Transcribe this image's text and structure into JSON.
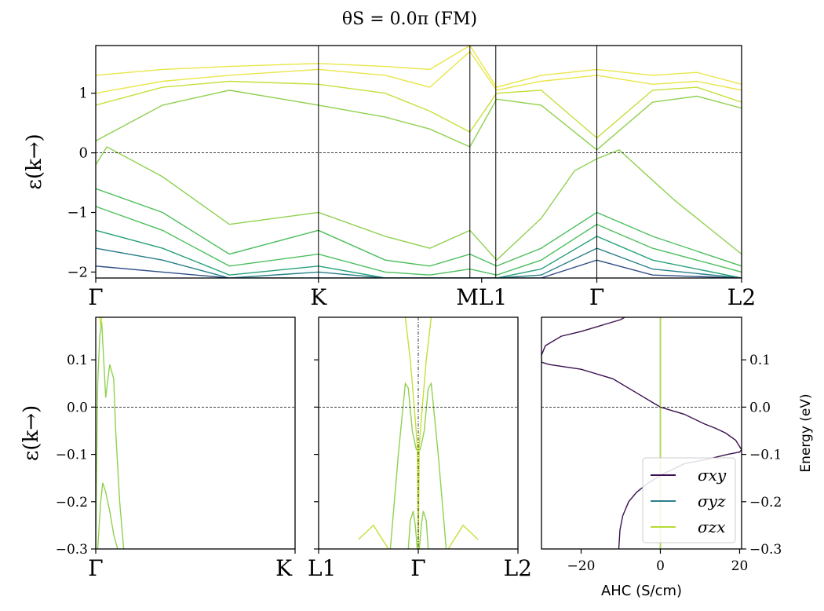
{
  "title": "θS = 0.0π (FM)",
  "colors": {
    "band_palette": [
      "#2f4f86",
      "#2a7f8a",
      "#26a07a",
      "#4cbf5d",
      "#8fd14f",
      "#c6df3a",
      "#e9e64a"
    ],
    "sigma_xy": "#3b0f4f",
    "sigma_yz": "#2a7f8a",
    "sigma_zx": "#b5dc36",
    "axis": "#000000",
    "fermi_line": "#000000"
  },
  "chart_data": [
    {
      "type": "line",
      "panel": "band-structure-full",
      "ylabel": "ε(k→)",
      "ylim": [
        -2.1,
        1.8
      ],
      "yticks": [
        -2,
        -1,
        0,
        1
      ],
      "ytick_labels": [
        "−2",
        "−1",
        "0",
        "1"
      ],
      "path_labels": [
        "Γ",
        "K",
        "ML1",
        "Γ",
        "L2"
      ],
      "path_positions": [
        0.0,
        1.0,
        1.68,
        2.25,
        2.9
      ],
      "fermi_level": 0,
      "series": [
        {
          "name": "band-1",
          "color_index": 6,
          "x": [
            0,
            0.3,
            0.6,
            1.0,
            1.3,
            1.5,
            1.68,
            1.8,
            2.0,
            2.25,
            2.5,
            2.7,
            2.9
          ],
          "y": [
            1.3,
            1.4,
            1.45,
            1.5,
            1.45,
            1.4,
            1.8,
            1.1,
            1.3,
            1.4,
            1.3,
            1.35,
            1.15
          ]
        },
        {
          "name": "band-2",
          "color_index": 6,
          "x": [
            0,
            0.3,
            0.6,
            1.0,
            1.3,
            1.5,
            1.68,
            1.8,
            2.0,
            2.25,
            2.5,
            2.7,
            2.9
          ],
          "y": [
            1.0,
            1.2,
            1.3,
            1.4,
            1.3,
            1.1,
            1.7,
            1.05,
            1.2,
            1.3,
            1.15,
            1.2,
            1.05
          ]
        },
        {
          "name": "band-3",
          "color_index": 5,
          "x": [
            0,
            0.3,
            0.6,
            1.0,
            1.3,
            1.5,
            1.68,
            1.8,
            2.0,
            2.25,
            2.5,
            2.7,
            2.9
          ],
          "y": [
            0.8,
            1.1,
            1.2,
            1.15,
            1.0,
            0.7,
            0.35,
            1.0,
            1.05,
            0.25,
            1.05,
            1.1,
            0.85
          ]
        },
        {
          "name": "band-4",
          "color_index": 4,
          "x": [
            0,
            0.3,
            0.6,
            1.0,
            1.3,
            1.5,
            1.68,
            1.8,
            2.0,
            2.25,
            2.5,
            2.7,
            2.9
          ],
          "y": [
            0.2,
            0.8,
            1.05,
            0.8,
            0.6,
            0.4,
            0.1,
            0.9,
            0.8,
            0.05,
            0.85,
            0.95,
            0.75
          ]
        },
        {
          "name": "band-5",
          "color_index": 4,
          "x": [
            0,
            0.05,
            0.3,
            0.6,
            1.0,
            1.3,
            1.5,
            1.68,
            1.8,
            2.0,
            2.15,
            2.25,
            2.35,
            2.6,
            2.9
          ],
          "y": [
            -0.2,
            0.1,
            -0.4,
            -1.2,
            -1.0,
            -1.4,
            -1.6,
            -1.3,
            -1.8,
            -1.1,
            -0.3,
            -0.1,
            0.05,
            -0.8,
            -1.7
          ]
        },
        {
          "name": "band-6",
          "color_index": 3,
          "x": [
            0,
            0.3,
            0.6,
            1.0,
            1.3,
            1.5,
            1.68,
            1.8,
            2.0,
            2.25,
            2.5,
            2.9
          ],
          "y": [
            -0.6,
            -1.0,
            -1.7,
            -1.3,
            -1.8,
            -1.9,
            -1.7,
            -1.9,
            -1.6,
            -1.0,
            -1.4,
            -1.9
          ]
        },
        {
          "name": "band-7",
          "color_index": 3,
          "x": [
            0,
            0.3,
            0.6,
            1.0,
            1.3,
            1.5,
            1.68,
            1.8,
            2.0,
            2.25,
            2.5,
            2.9
          ],
          "y": [
            -0.9,
            -1.3,
            -1.9,
            -1.7,
            -2.0,
            -2.05,
            -1.95,
            -2.05,
            -1.8,
            -1.2,
            -1.6,
            -2.0
          ]
        },
        {
          "name": "band-8",
          "color_index": 2,
          "x": [
            0,
            0.3,
            0.6,
            1.0,
            1.3,
            1.68,
            1.8,
            2.0,
            2.25,
            2.5,
            2.9
          ],
          "y": [
            -1.3,
            -1.6,
            -2.05,
            -1.9,
            -2.1,
            -2.1,
            -2.1,
            -1.95,
            -1.4,
            -1.8,
            -2.1
          ]
        },
        {
          "name": "band-9",
          "color_index": 1,
          "x": [
            0,
            0.3,
            0.6,
            1.0,
            1.3,
            1.68,
            1.8,
            2.0,
            2.25,
            2.5,
            2.9
          ],
          "y": [
            -1.6,
            -1.8,
            -2.1,
            -2.0,
            -2.1,
            -2.1,
            -2.1,
            -2.05,
            -1.6,
            -1.95,
            -2.1
          ]
        },
        {
          "name": "band-10",
          "color_index": 0,
          "x": [
            0,
            0.3,
            0.6,
            1.0,
            1.68,
            2.0,
            2.25,
            2.5,
            2.9
          ],
          "y": [
            -1.9,
            -2.0,
            -2.1,
            -2.1,
            -2.1,
            -2.1,
            -1.8,
            -2.05,
            -2.1
          ]
        }
      ]
    },
    {
      "type": "line",
      "panel": "band-zoom-gamma-k",
      "ylabel": "ε(k→)",
      "ylim": [
        -0.3,
        0.19
      ],
      "yticks": [
        -0.3,
        -0.2,
        -0.1,
        0.0,
        0.1
      ],
      "ytick_labels": [
        "−0.3",
        "−0.2",
        "−0.1",
        "0.0",
        "0.1"
      ],
      "path_labels": [
        "Γ",
        "K"
      ],
      "xlim": [
        0,
        1
      ],
      "fermi_level": 0,
      "series": [
        {
          "name": "band-a",
          "color_index": 4,
          "x": [
            0.0,
            0.005,
            0.01,
            0.02,
            0.03,
            0.05,
            0.07,
            0.09,
            0.1,
            0.12,
            0.14
          ],
          "y": [
            -0.3,
            -0.1,
            0.05,
            0.15,
            0.18,
            0.02,
            0.09,
            0.06,
            -0.05,
            -0.2,
            -0.3
          ]
        },
        {
          "name": "band-b",
          "color_index": 4,
          "x": [
            0.01,
            0.025,
            0.035,
            0.05,
            0.07,
            0.09,
            0.11
          ],
          "y": [
            -0.3,
            -0.2,
            -0.16,
            -0.18,
            -0.22,
            -0.27,
            -0.3
          ]
        },
        {
          "name": "band-c",
          "color_index": 5,
          "x": [
            0.02,
            0.025,
            0.03,
            0.04
          ],
          "y": [
            0.19,
            0.17,
            0.19,
            0.19
          ]
        }
      ]
    },
    {
      "type": "line",
      "panel": "band-zoom-l1-gamma-l2",
      "ylim": [
        -0.3,
        0.19
      ],
      "path_labels": [
        "L1",
        "Γ",
        "L2"
      ],
      "xlim": [
        -1,
        1
      ],
      "fermi_level": 0,
      "gamma_vline": true,
      "series": [
        {
          "name": "band-l",
          "color_index": 4,
          "x": [
            -0.28,
            -0.2,
            -0.13,
            -0.1,
            -0.06,
            -0.02,
            0.0
          ],
          "y": [
            -0.3,
            -0.1,
            0.05,
            0.04,
            -0.05,
            -0.09,
            -0.09
          ]
        },
        {
          "name": "band-r",
          "color_index": 4,
          "x": [
            0.0,
            0.02,
            0.06,
            0.1,
            0.13,
            0.2,
            0.28
          ],
          "y": [
            -0.09,
            -0.09,
            -0.05,
            0.04,
            0.05,
            -0.1,
            -0.3
          ]
        },
        {
          "name": "band-l-up",
          "color_index": 5,
          "x": [
            -0.13,
            -0.08,
            -0.04,
            -0.01,
            0.0
          ],
          "y": [
            0.19,
            0.1,
            0.0,
            -0.08,
            -0.3
          ]
        },
        {
          "name": "band-r-up",
          "color_index": 5,
          "x": [
            0.0,
            0.01,
            0.04,
            0.08,
            0.13
          ],
          "y": [
            -0.3,
            -0.08,
            0.0,
            0.1,
            0.19
          ]
        },
        {
          "name": "band-l-low",
          "color_index": 4,
          "x": [
            -0.1,
            -0.08,
            -0.05,
            -0.03,
            -0.01
          ],
          "y": [
            -0.3,
            -0.24,
            -0.22,
            -0.25,
            -0.3
          ]
        },
        {
          "name": "band-r-low",
          "color_index": 4,
          "x": [
            0.01,
            0.03,
            0.05,
            0.08,
            0.1
          ],
          "y": [
            -0.3,
            -0.25,
            -0.22,
            -0.24,
            -0.3
          ]
        },
        {
          "name": "band-outer-l",
          "color_index": 5,
          "x": [
            -0.6,
            -0.45,
            -0.3
          ],
          "y": [
            -0.28,
            -0.25,
            -0.3
          ]
        },
        {
          "name": "band-outer-r",
          "color_index": 5,
          "x": [
            0.3,
            0.45,
            0.6
          ],
          "y": [
            -0.3,
            -0.25,
            -0.28
          ]
        }
      ]
    },
    {
      "type": "line",
      "panel": "anomalous-hall-conductivity",
      "xlabel": "AHC (S/cm)",
      "ylabel": "Energy (eV)",
      "xlim": [
        -30,
        20.5
      ],
      "ylim": [
        -0.3,
        0.19
      ],
      "xticks": [
        -20,
        0,
        20
      ],
      "xtick_labels": [
        "−20",
        "0",
        "20"
      ],
      "yticks": [
        -0.3,
        -0.2,
        -0.1,
        0.0,
        0.1
      ],
      "ytick_labels": [
        "−0.3",
        "−0.2",
        "−0.1",
        "0.0",
        "0.1"
      ],
      "fermi_level": 0,
      "legend_position": "lower-right",
      "series": [
        {
          "name": "σxy",
          "color_key": "sigma_xy",
          "x": [
            -10.5,
            -10.2,
            -9.5,
            -8.0,
            -6.0,
            -3.0,
            1.0,
            6.0,
            12.0,
            17.0,
            20.0,
            20.5,
            19.0,
            16.5,
            14.0,
            11.0,
            6.0,
            2.0,
            0.0,
            -2.0,
            -6.0,
            -12.0,
            -20.0,
            -28.0,
            -30.0,
            -30.0,
            -29.0,
            -25.0,
            -20.0,
            -14.0,
            -10.0,
            -9.0
          ],
          "y": [
            -0.3,
            -0.26,
            -0.23,
            -0.2,
            -0.18,
            -0.16,
            -0.14,
            -0.12,
            -0.11,
            -0.1,
            -0.095,
            -0.09,
            -0.07,
            -0.055,
            -0.045,
            -0.035,
            -0.015,
            -0.005,
            0.0,
            0.01,
            0.03,
            0.06,
            0.08,
            0.09,
            0.095,
            0.11,
            0.13,
            0.15,
            0.16,
            0.175,
            0.185,
            0.19
          ]
        },
        {
          "name": "σyz",
          "color_key": "sigma_yz",
          "x": [
            0.0,
            0.0
          ],
          "y": [
            -0.3,
            0.19
          ]
        },
        {
          "name": "σzx",
          "color_key": "sigma_zx",
          "x": [
            0.0,
            0.0
          ],
          "y": [
            -0.3,
            0.19
          ]
        }
      ],
      "legend": [
        "σxy",
        "σyz",
        "σzx"
      ]
    }
  ]
}
